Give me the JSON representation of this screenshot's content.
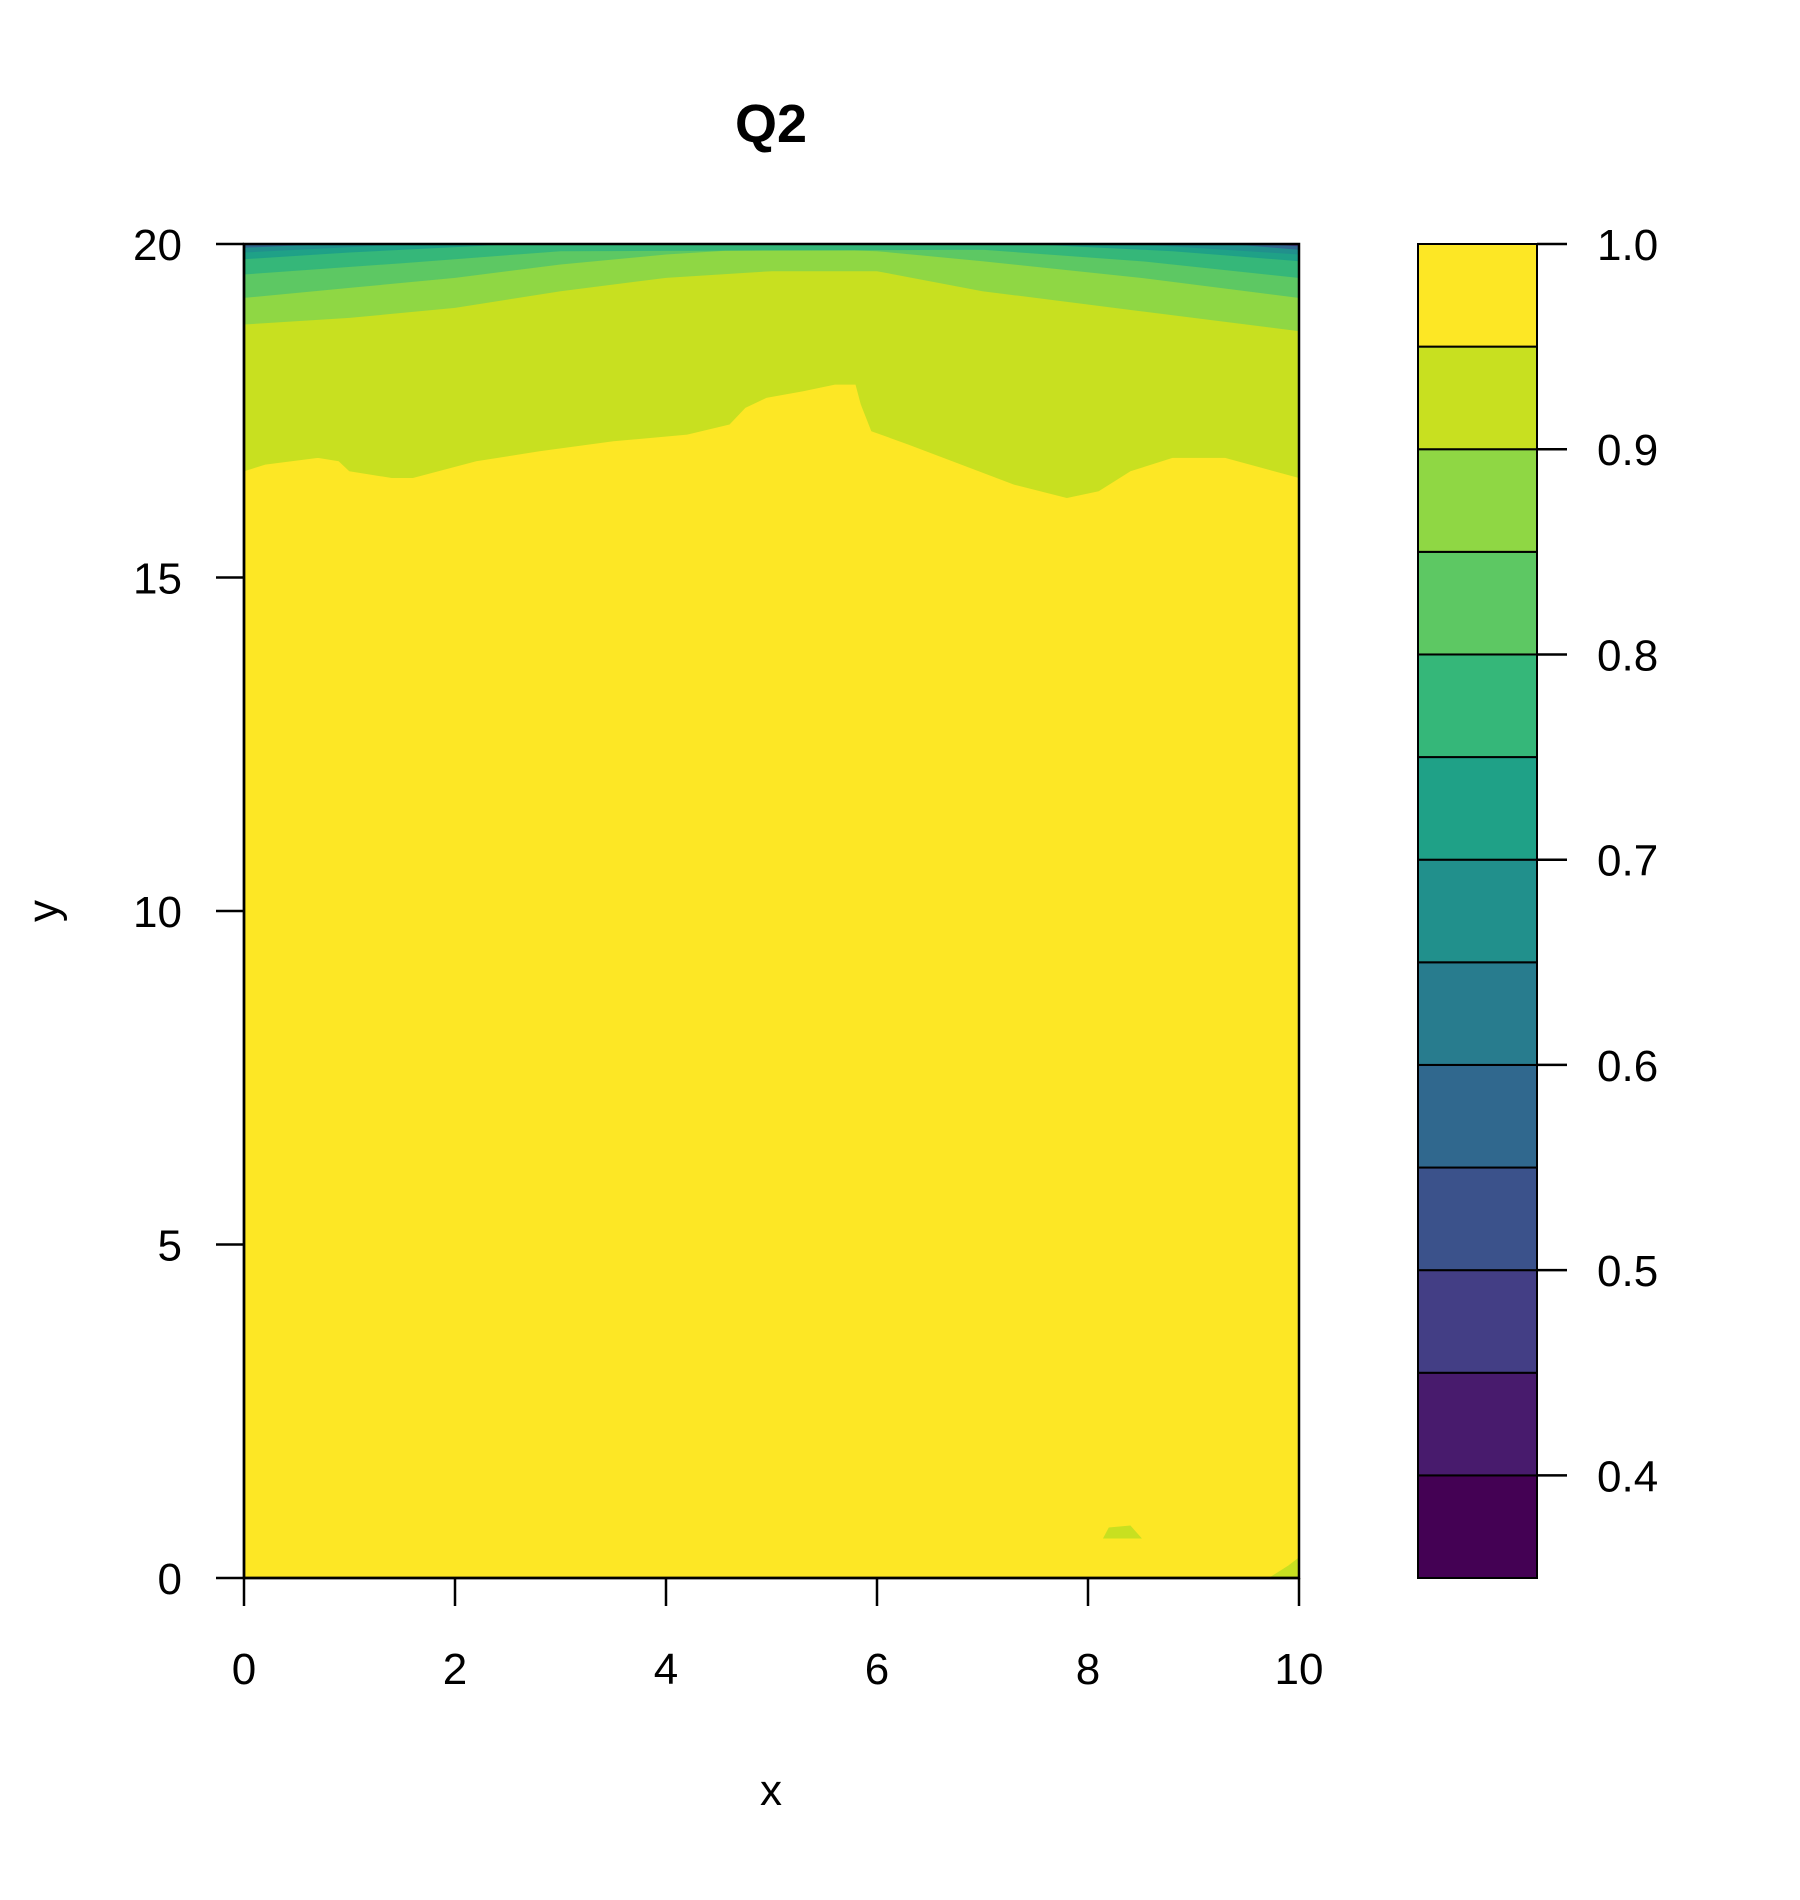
{
  "chart_data": {
    "type": "filled-contour",
    "title": "Q2",
    "xlabel": "x",
    "ylabel": "y",
    "xlim": [
      0,
      10
    ],
    "ylim": [
      0,
      20
    ],
    "x_ticks": [
      "0",
      "2",
      "4",
      "6",
      "8",
      "10"
    ],
    "y_ticks": [
      "0",
      "5",
      "10",
      "15",
      "20"
    ],
    "legend": {
      "placement": "right",
      "range": [
        0.35,
        1.0
      ],
      "levels": [
        0.35,
        0.4,
        0.45,
        0.5,
        0.55,
        0.6,
        0.65,
        0.7,
        0.75,
        0.8,
        0.85,
        0.9,
        0.95,
        1.0
      ],
      "tick_values": [
        0.4,
        0.5,
        0.6,
        0.7,
        0.8,
        0.9,
        1.0
      ],
      "tick_labels": [
        "0.4",
        "0.5",
        "0.6",
        "0.7",
        "0.8",
        "0.9",
        "1.0"
      ],
      "colors": [
        "#440154",
        "#481B6D",
        "#433E85",
        "#3B528B",
        "#30688E",
        "#287C8E",
        "#21908C",
        "#1FA187",
        "#35B779",
        "#5DC863",
        "#8FD744",
        "#C8E020",
        "#FDE725"
      ]
    },
    "regions": [
      {
        "level": "0.95-1.0",
        "color": "#FDE725",
        "description": "most of domain",
        "boundary": [
          [
            0,
            0
          ],
          [
            10,
            0
          ],
          [
            10,
            16.5
          ],
          [
            9.3,
            16.8
          ],
          [
            8.8,
            16.8
          ],
          [
            8.4,
            16.6
          ],
          [
            8.1,
            16.3
          ],
          [
            7.8,
            16.2
          ],
          [
            7.3,
            16.4
          ],
          [
            6.8,
            16.7
          ],
          [
            6.3,
            17.0
          ],
          [
            5.95,
            17.2
          ],
          [
            5.85,
            17.6
          ],
          [
            5.8,
            17.9
          ],
          [
            5.6,
            17.9
          ],
          [
            5.3,
            17.8
          ],
          [
            4.95,
            17.7
          ],
          [
            4.75,
            17.55
          ],
          [
            4.6,
            17.3
          ],
          [
            4.2,
            17.15
          ],
          [
            3.5,
            17.05
          ],
          [
            2.8,
            16.9
          ],
          [
            2.2,
            16.75
          ],
          [
            1.6,
            16.5
          ],
          [
            1.4,
            16.5
          ],
          [
            1.0,
            16.6
          ],
          [
            0.9,
            16.75
          ],
          [
            0.7,
            16.8
          ],
          [
            0.2,
            16.7
          ],
          [
            0,
            16.6
          ]
        ]
      },
      {
        "level": "0.90-0.95",
        "color": "#C8E020",
        "description": "upper band",
        "boundary": [
          [
            0,
            16.6
          ],
          [
            0.2,
            16.7
          ],
          [
            0.7,
            16.8
          ],
          [
            0.9,
            16.75
          ],
          [
            1.0,
            16.6
          ],
          [
            1.4,
            16.5
          ],
          [
            1.6,
            16.5
          ],
          [
            2.2,
            16.75
          ],
          [
            2.8,
            16.9
          ],
          [
            3.5,
            17.05
          ],
          [
            4.2,
            17.15
          ],
          [
            4.6,
            17.3
          ],
          [
            4.75,
            17.55
          ],
          [
            4.95,
            17.7
          ],
          [
            5.3,
            17.8
          ],
          [
            5.6,
            17.9
          ],
          [
            5.8,
            17.9
          ],
          [
            5.85,
            17.6
          ],
          [
            5.95,
            17.2
          ],
          [
            6.3,
            17.0
          ],
          [
            6.8,
            16.7
          ],
          [
            7.3,
            16.4
          ],
          [
            7.8,
            16.2
          ],
          [
            8.1,
            16.3
          ],
          [
            8.4,
            16.6
          ],
          [
            8.8,
            16.8
          ],
          [
            9.3,
            16.8
          ],
          [
            10,
            16.5
          ],
          [
            10,
            18.7
          ],
          [
            8.5,
            19.0
          ],
          [
            7,
            19.3
          ],
          [
            6,
            19.6
          ],
          [
            5,
            19.6
          ],
          [
            4,
            19.5
          ],
          [
            3,
            19.3
          ],
          [
            2,
            19.05
          ],
          [
            1,
            18.9
          ],
          [
            0,
            18.8
          ]
        ]
      },
      {
        "level": "0.85-0.90",
        "color": "#8FD744",
        "boundary": [
          [
            0,
            18.8
          ],
          [
            1,
            18.9
          ],
          [
            2,
            19.05
          ],
          [
            3,
            19.3
          ],
          [
            4,
            19.5
          ],
          [
            5,
            19.6
          ],
          [
            6,
            19.6
          ],
          [
            7,
            19.3
          ],
          [
            8.5,
            19.0
          ],
          [
            10,
            18.7
          ],
          [
            10,
            19.2
          ],
          [
            8.5,
            19.5
          ],
          [
            7,
            19.75
          ],
          [
            6,
            19.9
          ],
          [
            5,
            19.95
          ],
          [
            4,
            19.85
          ],
          [
            3,
            19.7
          ],
          [
            2,
            19.5
          ],
          [
            1,
            19.35
          ],
          [
            0,
            19.2
          ]
        ]
      },
      {
        "level": "0.80-0.85",
        "color": "#5DC863",
        "boundary": [
          [
            0,
            19.2
          ],
          [
            1,
            19.35
          ],
          [
            2,
            19.5
          ],
          [
            3,
            19.7
          ],
          [
            4,
            19.85
          ],
          [
            5,
            19.95
          ],
          [
            6,
            19.9
          ],
          [
            7,
            19.75
          ],
          [
            8.5,
            19.5
          ],
          [
            10,
            19.2
          ],
          [
            10,
            19.5
          ],
          [
            8.5,
            19.75
          ],
          [
            7,
            19.92
          ],
          [
            3,
            19.9
          ],
          [
            1.5,
            19.72
          ],
          [
            0,
            19.55
          ]
        ]
      },
      {
        "level": "0.75-0.80",
        "color": "#35B779",
        "boundary": [
          [
            0,
            19.55
          ],
          [
            1.5,
            19.72
          ],
          [
            3,
            19.9
          ],
          [
            7,
            19.92
          ],
          [
            8.5,
            19.75
          ],
          [
            10,
            19.5
          ],
          [
            10,
            19.75
          ],
          [
            8.8,
            19.9
          ],
          [
            7.5,
            20
          ],
          [
            2.5,
            20
          ],
          [
            1,
            19.88
          ],
          [
            0,
            19.78
          ]
        ]
      },
      {
        "level": "0.70-0.75",
        "color": "#1FA187",
        "boundary": [
          [
            0,
            19.78
          ],
          [
            1,
            19.88
          ],
          [
            2.5,
            20
          ],
          [
            7.5,
            20
          ],
          [
            8.8,
            19.9
          ],
          [
            10,
            19.75
          ],
          [
            10,
            19.85
          ],
          [
            9,
            19.95
          ],
          [
            8.5,
            20
          ],
          [
            1.5,
            20
          ],
          [
            0,
            19.88
          ]
        ]
      },
      {
        "level": "0.65-0.70",
        "color": "#21908C",
        "boundary": [
          [
            0,
            19.88
          ],
          [
            1.5,
            20
          ],
          [
            0,
            20
          ]
        ]
      },
      {
        "level": "0.65-0.70",
        "color": "#21908C",
        "boundary": [
          [
            10,
            19.85
          ],
          [
            10,
            20
          ],
          [
            8.5,
            20
          ],
          [
            9,
            19.95
          ]
        ]
      },
      {
        "level": "0.55-0.65",
        "color": "#30688E",
        "boundary": [
          [
            0,
            19.95
          ],
          [
            0.7,
            20
          ],
          [
            0,
            20
          ]
        ]
      },
      {
        "level": "0.55-0.65",
        "color": "#30688E",
        "boundary": [
          [
            10,
            19.92
          ],
          [
            10,
            20
          ],
          [
            9.4,
            20
          ]
        ]
      },
      {
        "level": "0.45-0.55",
        "color": "#433E85",
        "boundary": [
          [
            10,
            19.97
          ],
          [
            10,
            20
          ],
          [
            9.75,
            20
          ]
        ]
      },
      {
        "level": "0.90-0.95",
        "color": "#C8E020",
        "description": "small patch near x=8.3",
        "boundary": [
          [
            8.15,
            0.6
          ],
          [
            8.5,
            0.6
          ],
          [
            8.4,
            0.78
          ],
          [
            8.2,
            0.75
          ]
        ]
      },
      {
        "level": "0.90-0.95",
        "color": "#C8E020",
        "description": "corner patch near x=10",
        "boundary": [
          [
            9.72,
            0
          ],
          [
            10,
            0
          ],
          [
            10,
            0.3
          ],
          [
            9.9,
            0.18
          ]
        ]
      }
    ]
  }
}
